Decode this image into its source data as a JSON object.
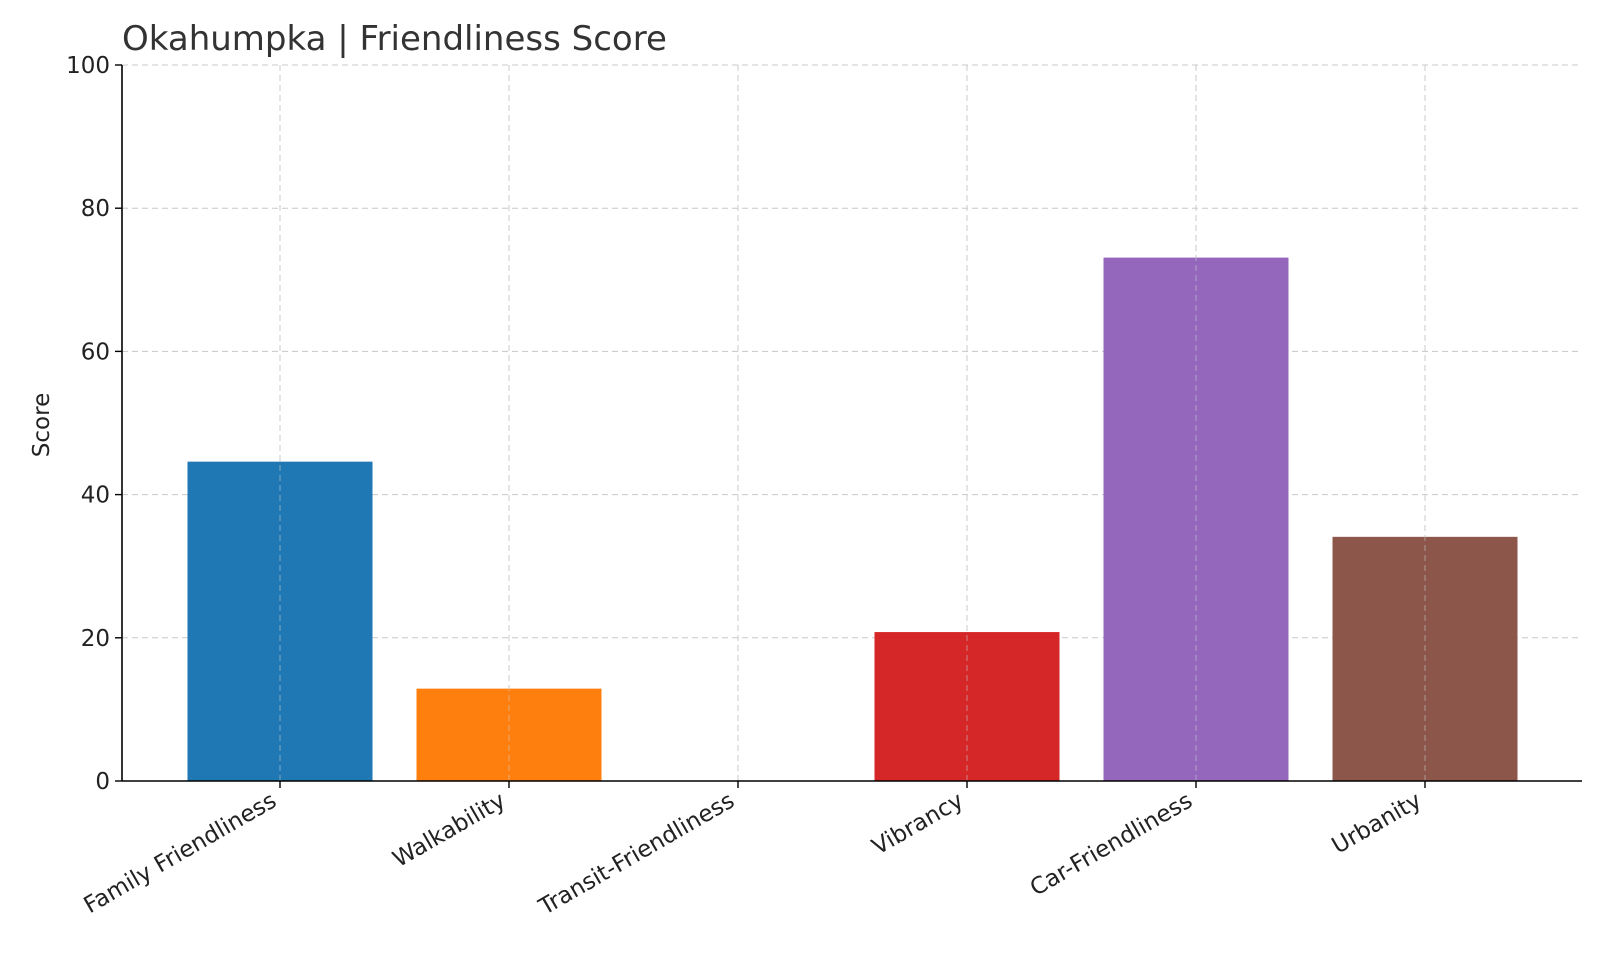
{
  "chart_data": {
    "type": "bar",
    "title": "Okahumpka |  Friendliness Score",
    "xlabel": "",
    "ylabel": "Score",
    "categories": [
      "Family Friendliness",
      "Walkability",
      "Transit-Friendliness",
      "Vibrancy",
      "Car-Friendliness",
      "Urbanity"
    ],
    "values": [
      44.6,
      12.9,
      0,
      20.8,
      73.1,
      34.1
    ],
    "colors": [
      "#1f77b4",
      "#ff7f0e",
      "#2ca02c",
      "#d62728",
      "#9467bd",
      "#8c564b"
    ],
    "ylim": [
      0,
      100
    ],
    "yticks": [
      0,
      20,
      40,
      60,
      80,
      100
    ],
    "grid": true,
    "legend": "none"
  }
}
